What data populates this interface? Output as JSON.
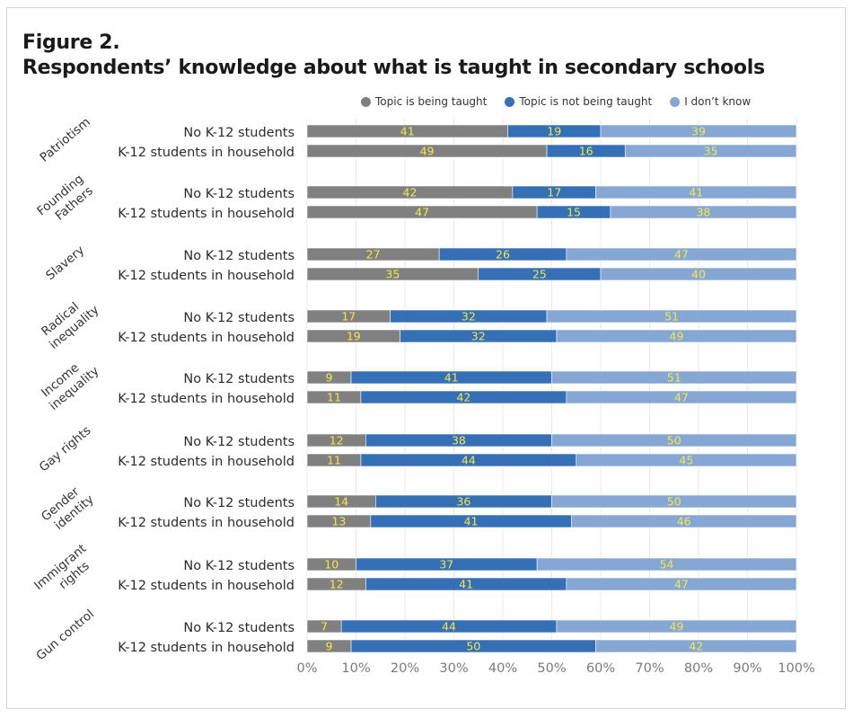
{
  "figure": {
    "title_line1": "Figure 2.",
    "title_line2": "Respondents’ knowledge about what is taught in secondary schools"
  },
  "legend": [
    {
      "label": "Topic is being taught",
      "color": "#808080"
    },
    {
      "label": "Topic is not being taught",
      "color": "#356fb5"
    },
    {
      "label": "I don’t know",
      "color": "#86a7d4"
    }
  ],
  "chart_data": {
    "type": "bar",
    "orientation": "horizontal",
    "stacked": true,
    "title": "Respondents’ knowledge about what is taught in secondary schools",
    "xlabel": "",
    "ylabel": "",
    "xlim": [
      0,
      100
    ],
    "x_ticks": [
      "0%",
      "10%",
      "20%",
      "30%",
      "40%",
      "50%",
      "60%",
      "70%",
      "80%",
      "90%",
      "100%"
    ],
    "grid": true,
    "legend_position": "top-right",
    "value_label_color": "#f3e84a",
    "series_names": [
      "Topic is being taught",
      "Topic is not being taught",
      "I don’t know"
    ],
    "series_colors": [
      "#808080",
      "#356fb5",
      "#86a7d4"
    ],
    "groups": [
      {
        "topic": "Patriotism",
        "rows": [
          {
            "label": "No K-12 students",
            "values": [
              41,
              19,
              39
            ]
          },
          {
            "label": "K-12 students in household",
            "values": [
              49,
              16,
              35
            ]
          }
        ]
      },
      {
        "topic": "Founding Fathers",
        "rows": [
          {
            "label": "No K-12 students",
            "values": [
              42,
              17,
              41
            ]
          },
          {
            "label": "K-12 students in household",
            "values": [
              47,
              15,
              38
            ]
          }
        ]
      },
      {
        "topic": "Slavery",
        "rows": [
          {
            "label": "No K-12 students",
            "values": [
              27,
              26,
              47
            ]
          },
          {
            "label": "K-12 students in household",
            "values": [
              35,
              25,
              40
            ]
          }
        ]
      },
      {
        "topic": "Radical inequality",
        "rows": [
          {
            "label": "No K-12 students",
            "values": [
              17,
              32,
              51
            ]
          },
          {
            "label": "K-12 students in household",
            "values": [
              19,
              32,
              49
            ]
          }
        ]
      },
      {
        "topic": "Income inequality",
        "rows": [
          {
            "label": "No K-12 students",
            "values": [
              9,
              41,
              51
            ]
          },
          {
            "label": "K-12 students in household",
            "values": [
              11,
              42,
              47
            ]
          }
        ]
      },
      {
        "topic": "Gay rights",
        "rows": [
          {
            "label": "No K-12 students",
            "values": [
              12,
              38,
              50
            ]
          },
          {
            "label": "K-12 students in household",
            "values": [
              11,
              44,
              45
            ]
          }
        ]
      },
      {
        "topic": "Gender identity",
        "rows": [
          {
            "label": "No K-12 students",
            "values": [
              14,
              36,
              50
            ]
          },
          {
            "label": "K-12 students in household",
            "values": [
              13,
              41,
              46
            ]
          }
        ]
      },
      {
        "topic": "Immigrant rights",
        "rows": [
          {
            "label": "No K-12 students",
            "values": [
              10,
              37,
              54
            ]
          },
          {
            "label": "K-12 students in household",
            "values": [
              12,
              41,
              47
            ]
          }
        ]
      },
      {
        "topic": "Gun control",
        "rows": [
          {
            "label": "No K-12 students",
            "values": [
              7,
              44,
              49
            ]
          },
          {
            "label": "K-12 students in household",
            "values": [
              9,
              50,
              42
            ]
          }
        ]
      }
    ]
  }
}
